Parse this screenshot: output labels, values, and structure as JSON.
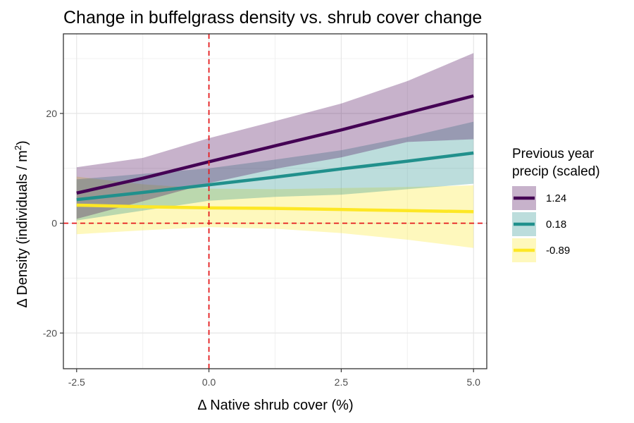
{
  "chart_data": {
    "type": "line",
    "title": "Change in buffelgrass density vs. shrub cover change",
    "xlabel": "Δ Native shrub cover (%)",
    "ylabel": "Δ Density (individuals / m²)",
    "ylabel_parts": {
      "prefix": "Δ Density (individuals / m",
      "sup": "2",
      "suffix": ")"
    },
    "xlim": [
      -2.75,
      5.25
    ],
    "ylim": [
      -26.5,
      34.5
    ],
    "x_ticks": [
      -2.5,
      0.0,
      2.5,
      5.0
    ],
    "x_tick_labels": [
      "-2.5",
      "0.0",
      "2.5",
      "5.0"
    ],
    "y_ticks": [
      -20,
      0,
      20
    ],
    "y_tick_labels": [
      "-20",
      "0",
      "20"
    ],
    "x_minor_ticks": [
      -1.25,
      1.25,
      3.75
    ],
    "y_minor_ticks": [
      -10,
      10,
      30
    ],
    "grid": true,
    "reference_lines": [
      {
        "orientation": "vertical",
        "value": 0,
        "color": "#e41a1c",
        "style": "dashed"
      },
      {
        "orientation": "horizontal",
        "value": 0,
        "color": "#e41a1c",
        "style": "dashed"
      }
    ],
    "legend": {
      "title_lines": [
        "Previous year",
        "precip (scaled)"
      ],
      "placement": "right"
    },
    "x": [
      -2.5,
      -1.25,
      0,
      1.25,
      2.5,
      3.75,
      5
    ],
    "series": [
      {
        "name": "1.24",
        "color": "#440154",
        "values": [
          5.5,
          8.2,
          11.2,
          14.1,
          17.0,
          20.1,
          23.2
        ],
        "lower": [
          0.8,
          4.0,
          7.3,
          9.9,
          12.0,
          14.8,
          15.3
        ],
        "upper": [
          10.2,
          11.9,
          15.5,
          18.6,
          21.8,
          25.9,
          31.0
        ]
      },
      {
        "name": "0.18",
        "color": "#21908c",
        "values": [
          4.3,
          5.6,
          7.0,
          8.4,
          9.9,
          11.3,
          12.8
        ],
        "lower": [
          0.5,
          2.3,
          4.1,
          4.8,
          5.2,
          6.2,
          7.2
        ],
        "upper": [
          8.0,
          9.0,
          10.0,
          11.6,
          13.3,
          15.7,
          18.5
        ]
      },
      {
        "name": "-0.89",
        "color": "#fde725",
        "values": [
          3.3,
          3.0,
          2.8,
          2.7,
          2.5,
          2.3,
          2.1
        ],
        "lower": [
          -2.0,
          -1.3,
          -0.7,
          -1.0,
          -1.8,
          -3.0,
          -4.5
        ],
        "upper": [
          8.5,
          7.1,
          6.3,
          6.2,
          6.4,
          6.6,
          6.9
        ]
      }
    ]
  }
}
